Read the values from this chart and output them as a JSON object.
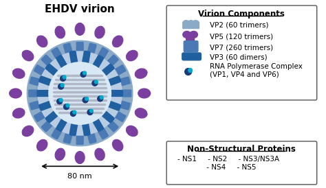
{
  "title": "EHDV virion",
  "scale_label": "80 nm",
  "virion_components_title": "Virion Components",
  "non_structural_title": "Non-Structural Proteins",
  "legend_items": [
    {
      "label": "VP2 (60 trimers)",
      "color_main": "#a0b8d8",
      "color_accent": "#8aaac8"
    },
    {
      "label": "VP5 (120 trimers)",
      "color_main": "#7b3fa0",
      "color_accent": "#6a2d8a"
    },
    {
      "label": "VP7 (260 trimers)",
      "color_main": "#4a7ab5",
      "color_accent": "#3a6aa5"
    },
    {
      "label": "VP3 (60 dimers)",
      "color_main": "#2a5a9a",
      "color_accent": "#1a4a8a"
    },
    {
      "label": "RNA Polymerase Complex\n(VP1, VP4 and VP6)",
      "color_main": "#1a3a7a",
      "color_accent": "#0a2a6a"
    }
  ],
  "ns_proteins": [
    "- NS1     - NS2     - NS3/NS3A",
    "            - NS4     - NS5"
  ],
  "bg_color": "#ffffff",
  "outer_blob_color": "#7b3fa0",
  "outer_shell_color": "#8aaac8",
  "inner_shell_color": "#b8cce4",
  "core_bg_color": "#d8e8f4",
  "segment_color": "#b0b8c8",
  "vp7_color": "#4a7ab5",
  "vp3_color": "#2060a0",
  "polymerase_color": "#1a3a7a",
  "polymerase_dot_color": "#00aacc"
}
